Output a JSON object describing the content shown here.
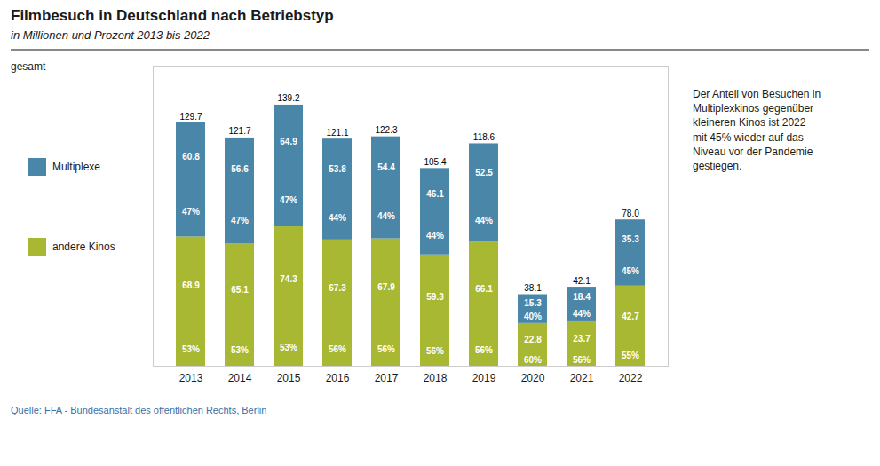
{
  "chart_data": {
    "type": "bar",
    "stacked": true,
    "title": "Filmbesuch in Deutschland nach Betriebstyp",
    "subtitle": "in Millionen und Prozent 2013 bis 2022",
    "categories": [
      "2013",
      "2014",
      "2015",
      "2016",
      "2017",
      "2018",
      "2019",
      "2020",
      "2021",
      "2022"
    ],
    "series": [
      {
        "name": "andere Kinos",
        "color": "#a8b832",
        "values": [
          68.9,
          65.1,
          74.3,
          67.3,
          67.9,
          59.3,
          66.1,
          22.8,
          23.7,
          42.7
        ],
        "shares": [
          {
            "value": 53,
            "label": "53%"
          },
          {
            "value": 53,
            "label": "53%"
          },
          {
            "value": 53,
            "label": "53%"
          },
          {
            "value": 56,
            "label": "56%"
          },
          {
            "value": 56,
            "label": "56%"
          },
          {
            "value": 56,
            "label": "56%"
          },
          {
            "value": 56,
            "label": "56%"
          },
          {
            "value": 60,
            "label": "60%"
          },
          {
            "value": 56,
            "label": "56%"
          },
          {
            "value": 55,
            "label": "55%"
          }
        ]
      },
      {
        "name": "Multiplexe",
        "color": "#4a86a8",
        "values": [
          60.8,
          56.6,
          64.9,
          53.8,
          54.4,
          46.1,
          52.5,
          15.3,
          18.4,
          35.3
        ],
        "shares": [
          {
            "value": 47,
            "label": "47%"
          },
          {
            "value": 47,
            "label": "47%"
          },
          {
            "value": 47,
            "label": "47%"
          },
          {
            "value": 44,
            "label": "44%"
          },
          {
            "value": 44,
            "label": "44%"
          },
          {
            "value": 44,
            "label": "44%"
          },
          {
            "value": 44,
            "label": "44%"
          },
          {
            "value": 40,
            "label": "40%"
          },
          {
            "value": 44,
            "label": "44%"
          },
          {
            "value": 45,
            "label": "45%"
          }
        ]
      }
    ],
    "totals": [
      129.7,
      121.7,
      139.2,
      121.1,
      122.3,
      105.4,
      118.6,
      38.1,
      42.1,
      78.0
    ],
    "total_labels": [
      "129.7",
      "121.7",
      "139.2",
      "121.1",
      "122.3",
      "105.4",
      "118.6",
      "38.1",
      "42.1",
      "78.0"
    ],
    "totals_label": "gesamt",
    "annotation": "Der Anteil von Besuchen in\nMultiplexkinos gegenüber\nkleineren Kinos ist 2022\nmit 45% wieder auf das\nNiveau vor der Pandemie\ngestiegen.",
    "source": "Quelle: FFA - Bundesanstalt des öffentlichen Rechts, Berlin",
    "ylim": [
      0,
      160
    ],
    "yticks": [],
    "tick_labels": "x",
    "grid": false,
    "legend": "left",
    "data_labels": true
  }
}
